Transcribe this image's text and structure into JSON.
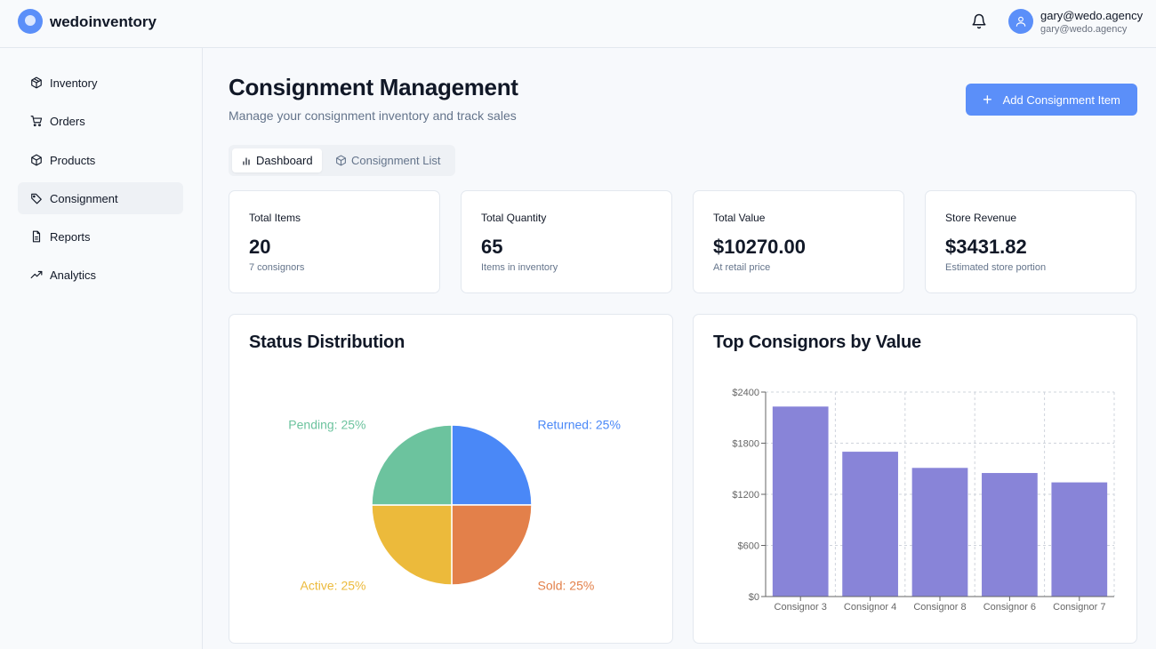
{
  "header": {
    "brand": "wedoinventory",
    "user_name": "gary@wedo.agency",
    "user_email": "gary@wedo.agency"
  },
  "sidebar": {
    "items": [
      {
        "label": "Inventory",
        "icon": "box-icon"
      },
      {
        "label": "Orders",
        "icon": "cart-icon"
      },
      {
        "label": "Products",
        "icon": "package-icon"
      },
      {
        "label": "Consignment",
        "icon": "tag-icon",
        "active": true
      },
      {
        "label": "Reports",
        "icon": "file-icon"
      },
      {
        "label": "Analytics",
        "icon": "trend-icon"
      }
    ]
  },
  "page": {
    "title": "Consignment Management",
    "subtitle": "Manage your consignment inventory and track sales",
    "add_button": "Add Consignment Item"
  },
  "tabs": [
    {
      "label": "Dashboard",
      "active": true
    },
    {
      "label": "Consignment List",
      "active": false
    }
  ],
  "stats": [
    {
      "label": "Total Items",
      "value": "20",
      "sub": "7 consignors"
    },
    {
      "label": "Total Quantity",
      "value": "65",
      "sub": "Items in inventory"
    },
    {
      "label": "Total Value",
      "value": "$10270.00",
      "sub": "At retail price"
    },
    {
      "label": "Store Revenue",
      "value": "$3431.82",
      "sub": "Estimated store portion"
    }
  ],
  "colors": {
    "accent": "#5b8ff9",
    "bar": "#8884d8",
    "returned": "#4a88f7",
    "sold": "#e3804a",
    "active": "#ecba3b",
    "pending": "#6cc39e"
  },
  "chart_data": [
    {
      "type": "pie",
      "title": "Status Distribution",
      "slices": [
        {
          "label": "Returned",
          "value": 25,
          "display": "Returned: 25%",
          "color": "#4a88f7"
        },
        {
          "label": "Sold",
          "value": 25,
          "display": "Sold: 25%",
          "color": "#e3804a"
        },
        {
          "label": "Active",
          "value": 25,
          "display": "Active: 25%",
          "color": "#ecba3b"
        },
        {
          "label": "Pending",
          "value": 25,
          "display": "Pending: 25%",
          "color": "#6cc39e"
        }
      ]
    },
    {
      "type": "bar",
      "title": "Top Consignors by Value",
      "categories": [
        "Consignor 3",
        "Consignor 4",
        "Consignor 8",
        "Consignor 6",
        "Consignor 7"
      ],
      "values": [
        2230,
        1700,
        1510,
        1450,
        1340
      ],
      "ylim": [
        0,
        2400
      ],
      "yticks": [
        0,
        600,
        1200,
        1800,
        2400
      ],
      "ytick_labels": [
        "$0",
        "$600",
        "$1200",
        "$1800",
        "$2400"
      ],
      "grid": true,
      "color": "#8884d8"
    }
  ]
}
